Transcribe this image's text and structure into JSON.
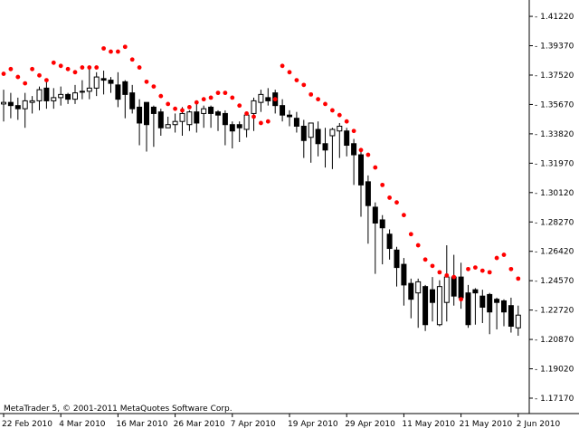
{
  "watermark": "MetaTrader 5, © 2001-2011 MetaQuotes Software Corp.",
  "chart_data": {
    "type": "candlestick",
    "ylim": [
      1.162,
      1.4225
    ],
    "y_ticks": [
      "1.41220",
      "1.39370",
      "1.37520",
      "1.35670",
      "1.33820",
      "1.31970",
      "1.30120",
      "1.28270",
      "1.26420",
      "1.24570",
      "1.22720",
      "1.20870",
      "1.19020",
      "1.17170"
    ],
    "x_ticks": [
      "22 Feb 2010",
      "4 Mar 2010",
      "16 Mar 2010",
      "26 Mar 2010",
      "7 Apr 2010",
      "19 Apr 2010",
      "29 Apr 2010",
      "11 May 2010",
      "21 May 2010",
      "2 Jun 2010"
    ],
    "x_tick_bar_index": [
      0,
      8,
      16,
      24,
      32,
      40,
      48,
      56,
      64,
      72
    ],
    "colors": {
      "bull": "#ffffff",
      "bear": "#000000",
      "outline": "#000000",
      "sar": "#ff0000",
      "grid": "#000000"
    },
    "series": [
      {
        "name": "",
        "kind": "ohlc",
        "open": [
          1.357,
          1.358,
          1.356,
          1.354,
          1.358,
          1.359,
          1.367,
          1.359,
          1.361,
          1.363,
          1.36,
          1.365,
          1.365,
          1.367,
          1.373,
          1.372,
          1.369,
          1.371,
          1.364,
          1.355,
          1.358,
          1.355,
          1.352,
          1.342,
          1.344,
          1.346,
          1.344,
          1.352,
          1.351,
          1.355,
          1.352,
          1.351,
          1.344,
          1.344,
          1.341,
          1.351,
          1.358,
          1.361,
          1.364,
          1.356,
          1.35,
          1.348,
          1.343,
          1.336,
          1.341,
          1.332,
          1.337,
          1.34,
          1.34,
          1.332,
          1.325,
          1.308,
          1.292,
          1.284,
          1.275,
          1.265,
          1.256,
          1.244,
          1.238,
          1.242,
          1.24,
          1.218,
          1.232,
          1.248,
          1.248,
          1.238,
          1.24,
          1.236,
          1.237,
          1.234,
          1.233,
          1.23,
          1.216
        ],
        "high": [
          1.366,
          1.364,
          1.361,
          1.364,
          1.362,
          1.368,
          1.372,
          1.367,
          1.368,
          1.364,
          1.369,
          1.372,
          1.379,
          1.377,
          1.378,
          1.374,
          1.377,
          1.372,
          1.369,
          1.36,
          1.357,
          1.356,
          1.354,
          1.349,
          1.351,
          1.355,
          1.353,
          1.359,
          1.356,
          1.356,
          1.353,
          1.353,
          1.346,
          1.346,
          1.352,
          1.361,
          1.366,
          1.367,
          1.366,
          1.36,
          1.353,
          1.352,
          1.347,
          1.345,
          1.346,
          1.342,
          1.342,
          1.345,
          1.342,
          1.335,
          1.327,
          1.312,
          1.295,
          1.287,
          1.278,
          1.267,
          1.26,
          1.247,
          1.247,
          1.243,
          1.248,
          1.246,
          1.268,
          1.262,
          1.257,
          1.243,
          1.241,
          1.24,
          1.238,
          1.235,
          1.234,
          1.235,
          1.23
        ],
        "low": [
          1.346,
          1.348,
          1.347,
          1.342,
          1.351,
          1.353,
          1.354,
          1.354,
          1.356,
          1.357,
          1.357,
          1.36,
          1.36,
          1.362,
          1.363,
          1.364,
          1.355,
          1.348,
          1.351,
          1.331,
          1.327,
          1.33,
          1.337,
          1.342,
          1.339,
          1.337,
          1.34,
          1.339,
          1.342,
          1.342,
          1.34,
          1.331,
          1.329,
          1.333,
          1.336,
          1.34,
          1.352,
          1.356,
          1.351,
          1.346,
          1.343,
          1.339,
          1.323,
          1.32,
          1.324,
          1.317,
          1.316,
          1.323,
          1.324,
          1.306,
          1.286,
          1.269,
          1.25,
          1.256,
          1.259,
          1.242,
          1.23,
          1.222,
          1.216,
          1.214,
          1.22,
          1.217,
          1.22,
          1.23,
          1.228,
          1.216,
          1.218,
          1.219,
          1.212,
          1.215,
          1.217,
          1.213,
          1.211
        ],
        "close": [
          1.358,
          1.356,
          1.354,
          1.359,
          1.359,
          1.366,
          1.359,
          1.361,
          1.363,
          1.36,
          1.364,
          1.365,
          1.367,
          1.374,
          1.372,
          1.37,
          1.36,
          1.363,
          1.354,
          1.345,
          1.344,
          1.351,
          1.342,
          1.344,
          1.346,
          1.351,
          1.352,
          1.345,
          1.354,
          1.351,
          1.35,
          1.344,
          1.34,
          1.342,
          1.35,
          1.359,
          1.363,
          1.359,
          1.356,
          1.35,
          1.349,
          1.343,
          1.334,
          1.345,
          1.332,
          1.328,
          1.341,
          1.343,
          1.331,
          1.325,
          1.306,
          1.293,
          1.282,
          1.279,
          1.266,
          1.254,
          1.243,
          1.234,
          1.245,
          1.218,
          1.232,
          1.242,
          1.248,
          1.236,
          1.235,
          1.218,
          1.238,
          1.229,
          1.226,
          1.232,
          1.226,
          1.217,
          1.224
        ]
      },
      {
        "name": "",
        "kind": "parabolic_sar",
        "values": [
          1.376,
          1.379,
          1.374,
          1.37,
          1.379,
          1.375,
          1.372,
          1.383,
          1.381,
          1.379,
          1.377,
          1.38,
          1.38,
          1.38,
          1.392,
          1.39,
          1.39,
          1.393,
          1.385,
          1.38,
          1.371,
          1.368,
          1.362,
          1.357,
          1.354,
          1.353,
          1.355,
          1.358,
          1.36,
          1.361,
          1.364,
          1.364,
          1.361,
          1.356,
          1.351,
          1.349,
          1.345,
          1.346,
          1.36,
          1.381,
          1.377,
          1.372,
          1.369,
          1.363,
          1.36,
          1.357,
          1.353,
          1.35,
          1.346,
          1.34,
          1.328,
          1.325,
          1.317,
          1.306,
          1.298,
          1.295,
          1.287,
          1.275,
          1.268,
          1.259,
          1.255,
          1.251,
          1.249,
          1.248,
          1.234,
          1.253,
          1.254,
          1.252,
          1.251,
          1.26,
          1.262,
          1.253,
          1.247
        ]
      }
    ]
  }
}
